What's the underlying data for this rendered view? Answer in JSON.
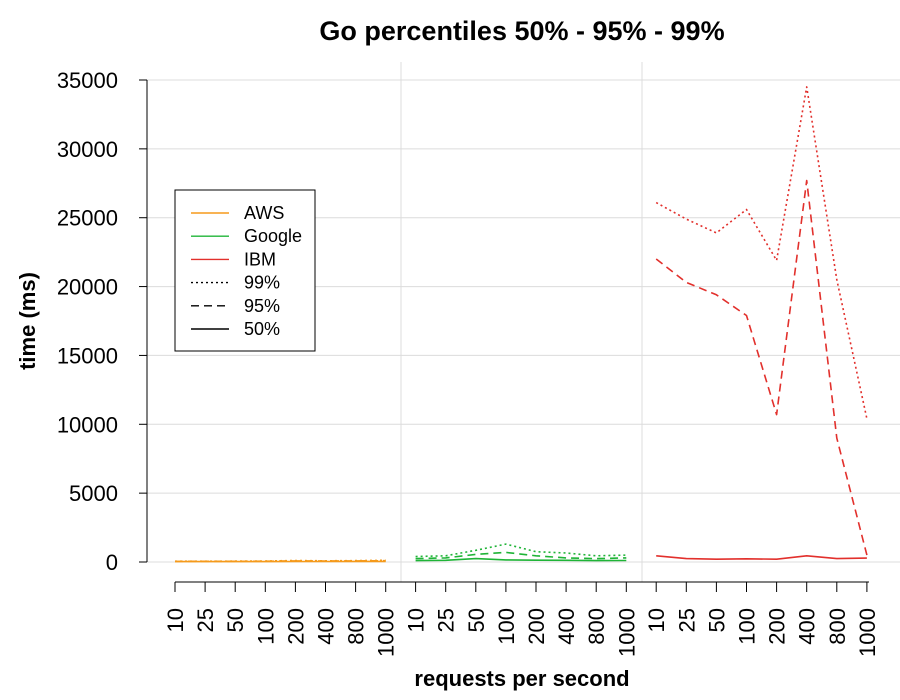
{
  "chart_data": {
    "type": "line",
    "title": "Go percentiles 50% - 95% - 99%",
    "xlabel": "requests per second",
    "ylabel": "time (ms)",
    "ylim": [
      0,
      35000
    ],
    "yticks": [
      0,
      5000,
      10000,
      15000,
      20000,
      25000,
      30000,
      35000
    ],
    "categories": [
      "10",
      "25",
      "50",
      "100",
      "200",
      "400",
      "800",
      "1000"
    ],
    "grid": true,
    "legend_position": "left",
    "legend": [
      {
        "label": "AWS",
        "color": "#f59a1b",
        "style": "solid"
      },
      {
        "label": "Google",
        "color": "#1fb437",
        "style": "solid"
      },
      {
        "label": "IBM",
        "color": "#e2302c",
        "style": "solid"
      },
      {
        "label": "99%",
        "color": "#000000",
        "style": "dotted"
      },
      {
        "label": "95%",
        "color": "#000000",
        "style": "dashed"
      },
      {
        "label": "50%",
        "color": "#000000",
        "style": "solid"
      }
    ],
    "panels": [
      {
        "provider": "AWS",
        "color": "#f59a1b",
        "series": [
          {
            "name": "99%",
            "style": "dotted",
            "values": [
              60,
              60,
              65,
              70,
              110,
              90,
              100,
              120
            ]
          },
          {
            "name": "95%",
            "style": "dashed",
            "values": [
              45,
              48,
              50,
              55,
              80,
              70,
              80,
              95
            ]
          },
          {
            "name": "50%",
            "style": "solid",
            "values": [
              30,
              30,
              30,
              32,
              35,
              35,
              40,
              45
            ]
          }
        ]
      },
      {
        "provider": "Google",
        "color": "#1fb437",
        "series": [
          {
            "name": "99%",
            "style": "dotted",
            "values": [
              400,
              450,
              850,
              1300,
              750,
              650,
              450,
              500
            ]
          },
          {
            "name": "95%",
            "style": "dashed",
            "values": [
              250,
              300,
              550,
              700,
              450,
              300,
              250,
              300
            ]
          },
          {
            "name": "50%",
            "style": "solid",
            "values": [
              100,
              120,
              250,
              150,
              130,
              120,
              100,
              110
            ]
          }
        ]
      },
      {
        "provider": "IBM",
        "color": "#e2302c",
        "series": [
          {
            "name": "99%",
            "style": "dotted",
            "values": [
              26100,
              24900,
              23900,
              25600,
              21900,
              34500,
              20500,
              10400
            ]
          },
          {
            "name": "95%",
            "style": "dashed",
            "values": [
              22000,
              20300,
              19400,
              17900,
              10700,
              27700,
              9000,
              500
            ]
          },
          {
            "name": "50%",
            "style": "solid",
            "values": [
              450,
              250,
              200,
              230,
              200,
              450,
              250,
              280
            ]
          }
        ]
      }
    ]
  }
}
